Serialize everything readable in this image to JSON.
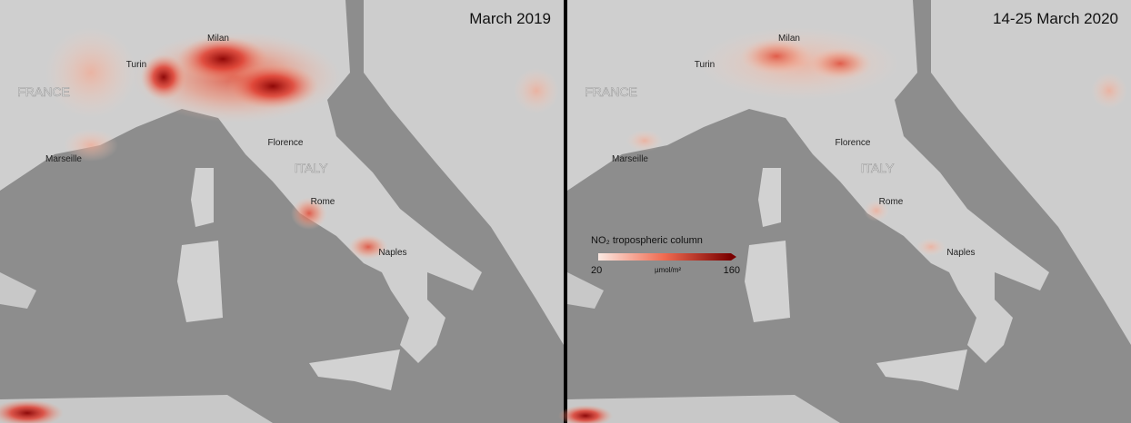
{
  "panels": [
    {
      "title": "March 2019",
      "labels": [
        "Milan",
        "Turin",
        "FRANCE",
        "Marseille",
        "Florence",
        "ITALY",
        "Rome",
        "Naples"
      ]
    },
    {
      "title": "14-25 March 2020",
      "labels": [
        "Milan",
        "Turin",
        "FRANCE",
        "Marseille",
        "Florence",
        "ITALY",
        "Rome",
        "Naples"
      ]
    }
  ],
  "legend": {
    "title": "NO₂ tropospheric column",
    "min": 20,
    "max": 160,
    "unit": "µmol/m²"
  }
}
